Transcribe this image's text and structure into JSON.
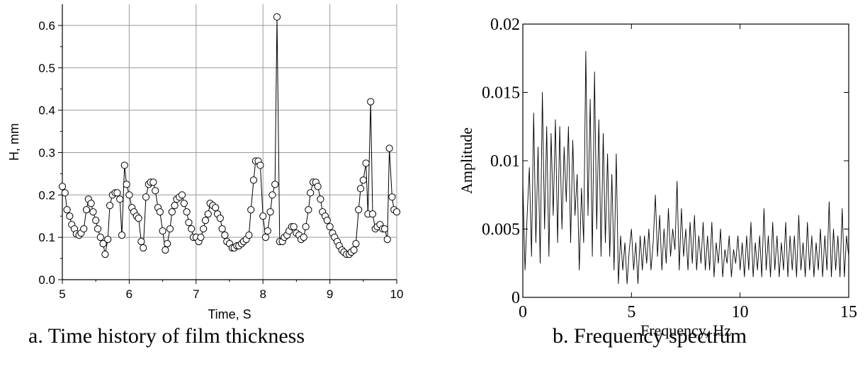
{
  "captions": {
    "a": "a. Time history of film thickness",
    "b": "b. Frequency spectrum"
  },
  "chart_data": [
    {
      "type": "scatter",
      "style": "line-with-open-circle-markers",
      "title": "",
      "xlabel": "Time, S",
      "ylabel": "H, mm",
      "xlim": [
        5,
        10
      ],
      "ylim": [
        0,
        0.65
      ],
      "xticks": [
        "5",
        "6",
        "7",
        "8",
        "9",
        "10"
      ],
      "yticks": [
        "0.0",
        "0.1",
        "0.2",
        "0.3",
        "0.4",
        "0.5",
        "0.6"
      ],
      "grid": true,
      "colors": {
        "line": "#000000",
        "marker_fill": "#ffffff",
        "grid": "#999999"
      },
      "series": [
        {
          "x": [
            5.0,
            5.04,
            5.07,
            5.11,
            5.14,
            5.18,
            5.21,
            5.25,
            5.28,
            5.32,
            5.36,
            5.39,
            5.43,
            5.46,
            5.5,
            5.53,
            5.57,
            5.61,
            5.64,
            5.68,
            5.71,
            5.75,
            5.79,
            5.82,
            5.86,
            5.89,
            5.93,
            5.96,
            6.0,
            6.04,
            6.07,
            6.11,
            6.14,
            6.18,
            6.21,
            6.25,
            6.29,
            6.32,
            6.36,
            6.39,
            6.43,
            6.46,
            6.5,
            6.54,
            6.57,
            6.61,
            6.64,
            6.68,
            6.71,
            6.75,
            6.79,
            6.82,
            6.86,
            6.89,
            6.93,
            6.96,
            7.0,
            7.04,
            7.07,
            7.11,
            7.14,
            7.18,
            7.21,
            7.25,
            7.29,
            7.32,
            7.36,
            7.39,
            7.43,
            7.46,
            7.5,
            7.54,
            7.57,
            7.61,
            7.64,
            7.68,
            7.71,
            7.75,
            7.79,
            7.82,
            7.86,
            7.89,
            7.93,
            7.96,
            8.0,
            8.04,
            8.07,
            8.11,
            8.14,
            8.18,
            8.21,
            8.25,
            8.29,
            8.32,
            8.36,
            8.39,
            8.43,
            8.46,
            8.5,
            8.54,
            8.57,
            8.61,
            8.64,
            8.68,
            8.71,
            8.75,
            8.79,
            8.82,
            8.86,
            8.89,
            8.93,
            8.96,
            9.0,
            9.04,
            9.07,
            9.11,
            9.14,
            9.18,
            9.21,
            9.25,
            9.29,
            9.32,
            9.36,
            9.39,
            9.43,
            9.46,
            9.5,
            9.54,
            9.57,
            9.61,
            9.64,
            9.68,
            9.71,
            9.75,
            9.79,
            9.82,
            9.86,
            9.89,
            9.93,
            9.96,
            10.0
          ],
          "y": [
            0.22,
            0.205,
            0.165,
            0.15,
            0.13,
            0.12,
            0.108,
            0.105,
            0.11,
            0.12,
            0.165,
            0.19,
            0.18,
            0.16,
            0.14,
            0.12,
            0.1,
            0.085,
            0.06,
            0.095,
            0.175,
            0.2,
            0.205,
            0.205,
            0.19,
            0.105,
            0.27,
            0.225,
            0.2,
            0.17,
            0.16,
            0.15,
            0.145,
            0.09,
            0.075,
            0.195,
            0.225,
            0.23,
            0.23,
            0.21,
            0.17,
            0.16,
            0.115,
            0.07,
            0.085,
            0.12,
            0.16,
            0.175,
            0.19,
            0.195,
            0.2,
            0.18,
            0.16,
            0.135,
            0.12,
            0.1,
            0.1,
            0.09,
            0.1,
            0.12,
            0.14,
            0.155,
            0.18,
            0.175,
            0.17,
            0.155,
            0.145,
            0.12,
            0.105,
            0.09,
            0.085,
            0.075,
            0.075,
            0.08,
            0.08,
            0.085,
            0.09,
            0.095,
            0.105,
            0.165,
            0.235,
            0.28,
            0.28,
            0.27,
            0.15,
            0.1,
            0.115,
            0.16,
            0.2,
            0.225,
            0.62,
            0.09,
            0.09,
            0.1,
            0.105,
            0.115,
            0.125,
            0.125,
            0.11,
            0.105,
            0.095,
            0.1,
            0.125,
            0.165,
            0.205,
            0.23,
            0.23,
            0.22,
            0.19,
            0.16,
            0.15,
            0.14,
            0.125,
            0.11,
            0.1,
            0.09,
            0.08,
            0.07,
            0.065,
            0.06,
            0.06,
            0.065,
            0.07,
            0.085,
            0.165,
            0.215,
            0.235,
            0.275,
            0.155,
            0.42,
            0.155,
            0.12,
            0.125,
            0.13,
            0.12,
            0.12,
            0.095,
            0.31,
            0.195,
            0.165,
            0.16
          ]
        }
      ]
    },
    {
      "type": "line",
      "title": "",
      "xlabel": "Frequency, Hz",
      "ylabel": "Amplitude",
      "xlim": [
        0,
        15
      ],
      "ylim": [
        0,
        0.02
      ],
      "xticks": [
        "0",
        "5",
        "10",
        "15"
      ],
      "yticks": [
        "0",
        "0.005",
        "0.01",
        "0.015",
        "0.02"
      ],
      "grid": false,
      "colors": {
        "line": "#000000"
      },
      "series": [
        {
          "x": [
            0,
            0.1,
            0.2,
            0.3,
            0.4,
            0.5,
            0.6,
            0.7,
            0.8,
            0.9,
            1.0,
            1.1,
            1.2,
            1.3,
            1.4,
            1.5,
            1.6,
            1.7,
            1.8,
            1.9,
            2.0,
            2.1,
            2.2,
            2.3,
            2.4,
            2.5,
            2.6,
            2.7,
            2.8,
            2.9,
            3.0,
            3.1,
            3.2,
            3.3,
            3.4,
            3.5,
            3.6,
            3.7,
            3.8,
            3.9,
            4.0,
            4.1,
            4.2,
            4.3,
            4.4,
            4.5,
            4.6,
            4.7,
            4.8,
            4.9,
            5.0,
            5.1,
            5.2,
            5.3,
            5.4,
            5.5,
            5.6,
            5.7,
            5.8,
            5.9,
            6.0,
            6.1,
            6.2,
            6.3,
            6.4,
            6.5,
            6.6,
            6.7,
            6.8,
            6.9,
            7.0,
            7.1,
            7.2,
            7.3,
            7.4,
            7.5,
            7.6,
            7.7,
            7.8,
            7.9,
            8.0,
            8.1,
            8.2,
            8.3,
            8.4,
            8.5,
            8.6,
            8.7,
            8.8,
            8.9,
            9.0,
            9.1,
            9.2,
            9.3,
            9.4,
            9.5,
            9.6,
            9.7,
            9.8,
            9.9,
            10.0,
            10.1,
            10.2,
            10.3,
            10.4,
            10.5,
            10.6,
            10.7,
            10.8,
            10.9,
            11.0,
            11.1,
            11.2,
            11.3,
            11.4,
            11.5,
            11.6,
            11.7,
            11.8,
            11.9,
            12.0,
            12.1,
            12.2,
            12.3,
            12.4,
            12.5,
            12.6,
            12.7,
            12.8,
            12.9,
            13.0,
            13.1,
            13.2,
            13.3,
            13.4,
            13.5,
            13.6,
            13.7,
            13.8,
            13.9,
            14.0,
            14.1,
            14.2,
            14.3,
            14.4,
            14.5,
            14.6,
            14.7,
            14.8,
            14.9,
            15.0
          ],
          "y": [
            0.0085,
            0.002,
            0.006,
            0.0095,
            0.003,
            0.0135,
            0.004,
            0.011,
            0.0025,
            0.015,
            0.005,
            0.0125,
            0.003,
            0.012,
            0.006,
            0.013,
            0.004,
            0.0125,
            0.005,
            0.011,
            0.007,
            0.0125,
            0.004,
            0.0115,
            0.006,
            0.009,
            0.002,
            0.008,
            0.004,
            0.018,
            0.006,
            0.0145,
            0.003,
            0.0165,
            0.005,
            0.013,
            0.003,
            0.012,
            0.004,
            0.0105,
            0.003,
            0.009,
            0.002,
            0.0105,
            0.001,
            0.0045,
            0.002,
            0.004,
            0.001,
            0.0035,
            0.005,
            0.002,
            0.004,
            0.001,
            0.0045,
            0.002,
            0.0045,
            0.0025,
            0.005,
            0.002,
            0.004,
            0.0075,
            0.003,
            0.006,
            0.002,
            0.005,
            0.0025,
            0.0065,
            0.003,
            0.005,
            0.0035,
            0.0085,
            0.002,
            0.0065,
            0.003,
            0.005,
            0.002,
            0.0055,
            0.0025,
            0.006,
            0.002,
            0.0045,
            0.0025,
            0.0055,
            0.002,
            0.0045,
            0.002,
            0.0055,
            0.0015,
            0.004,
            0.0025,
            0.005,
            0.0015,
            0.0035,
            0.0025,
            0.0045,
            0.0015,
            0.0035,
            0.0025,
            0.0045,
            0.002,
            0.004,
            0.0015,
            0.0045,
            0.002,
            0.0055,
            0.0015,
            0.004,
            0.002,
            0.0045,
            0.0015,
            0.0065,
            0.002,
            0.0045,
            0.0015,
            0.0055,
            0.002,
            0.0045,
            0.0015,
            0.004,
            0.002,
            0.0055,
            0.0015,
            0.0045,
            0.002,
            0.0045,
            0.0015,
            0.006,
            0.002,
            0.004,
            0.0015,
            0.0055,
            0.002,
            0.0045,
            0.0015,
            0.004,
            0.002,
            0.005,
            0.0015,
            0.0045,
            0.002,
            0.007,
            0.0015,
            0.005,
            0.002,
            0.0045,
            0.0015,
            0.0065,
            0.0015,
            0.0045,
            0.003
          ]
        }
      ]
    }
  ]
}
